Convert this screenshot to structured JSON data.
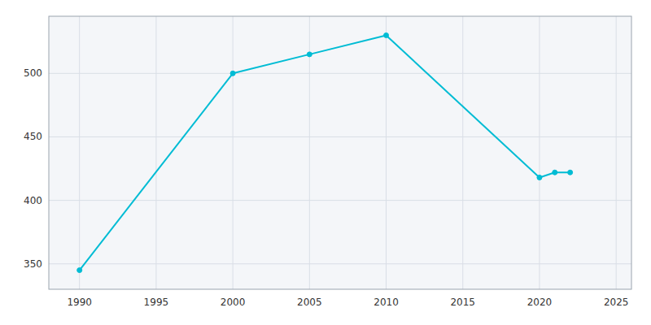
{
  "chart_data": {
    "type": "line",
    "x": [
      1990,
      2000,
      2005,
      2010,
      2020,
      2021,
      2022
    ],
    "values": [
      345,
      500,
      515,
      530,
      418,
      422,
      422
    ],
    "color": "#00BCD4",
    "marker": "circle",
    "xlim": [
      1988,
      2026
    ],
    "ylim": [
      330,
      545
    ],
    "xticks": [
      1990,
      1995,
      2000,
      2005,
      2010,
      2015,
      2020,
      2025
    ],
    "yticks": [
      350,
      400,
      450,
      500
    ],
    "grid": true
  }
}
